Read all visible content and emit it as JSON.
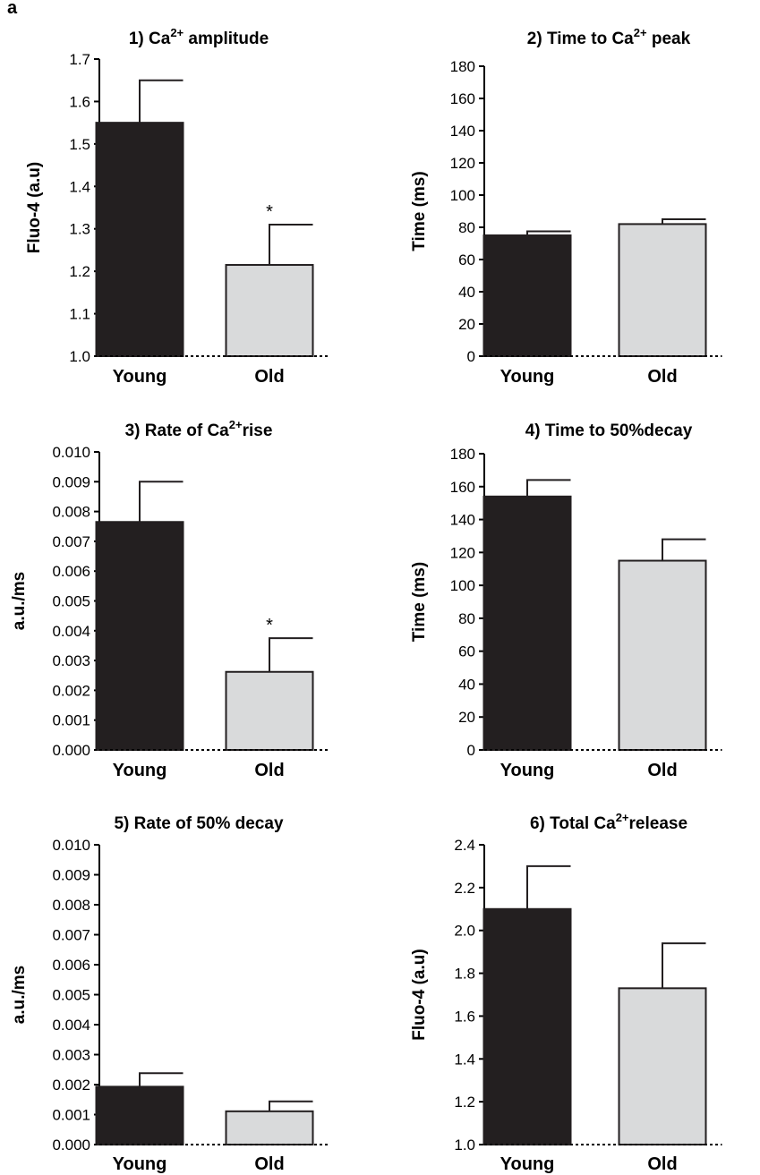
{
  "figure": {
    "panel_label": "a",
    "colors": {
      "young": "#231f20",
      "old": "#d9dadb",
      "axis": "#000000"
    }
  },
  "chart_data": [
    {
      "type": "bar",
      "title_parts": [
        "1) Ca",
        "2+",
        " amplitude"
      ],
      "ylabel": "Fluo-4 (a.u)",
      "categories": [
        "Young",
        "Old"
      ],
      "values": [
        1.55,
        1.215
      ],
      "errors": [
        0.1,
        0.095
      ],
      "significance": [
        "",
        "*"
      ],
      "ylim": [
        1.0,
        1.7
      ],
      "yticks": [
        "1.0",
        "1.1",
        "1.2",
        "1.3",
        "1.4",
        "1.5",
        "1.6",
        "1.7"
      ],
      "baseline_dotted": true
    },
    {
      "type": "bar",
      "title_parts": [
        "2) Time to Ca",
        "2+",
        " peak"
      ],
      "ylabel": "Time (ms)",
      "categories": [
        "Young",
        "Old"
      ],
      "values": [
        75,
        82
      ],
      "errors": [
        2.5,
        3
      ],
      "significance": [
        "",
        ""
      ],
      "ylim": [
        0,
        180
      ],
      "yticks": [
        "0",
        "20",
        "40",
        "60",
        "80",
        "100",
        "120",
        "140",
        "160",
        "180"
      ],
      "baseline_dotted": true
    },
    {
      "type": "bar",
      "title_parts": [
        "3) Rate of Ca",
        "2+",
        "rise"
      ],
      "ylabel": "a.u./ms",
      "categories": [
        "Young",
        "Old"
      ],
      "values": [
        0.00765,
        0.00262
      ],
      "errors": [
        0.00135,
        0.00113
      ],
      "significance": [
        "",
        "*"
      ],
      "ylim": [
        0.0,
        0.01
      ],
      "yticks": [
        "0.000",
        "0.001",
        "0.002",
        "0.003",
        "0.004",
        "0.005",
        "0.006",
        "0.007",
        "0.008",
        "0.009",
        "0.010"
      ],
      "baseline_dotted": true
    },
    {
      "type": "bar",
      "title_parts": [
        "4) Time to 50%decay",
        "",
        ""
      ],
      "ylabel": "Time (ms)",
      "categories": [
        "Young",
        "Old"
      ],
      "values": [
        154,
        115
      ],
      "errors": [
        10,
        13
      ],
      "significance": [
        "",
        ""
      ],
      "ylim": [
        0,
        180
      ],
      "yticks": [
        "0",
        "20",
        "40",
        "60",
        "80",
        "100",
        "120",
        "140",
        "160",
        "180"
      ],
      "baseline_dotted": true
    },
    {
      "type": "bar",
      "title_parts": [
        "5) Rate of 50% decay",
        "",
        ""
      ],
      "ylabel": "a.u./ms",
      "categories": [
        "Young",
        "Old"
      ],
      "values": [
        0.00193,
        0.00111
      ],
      "errors": [
        0.00045,
        0.00033
      ],
      "significance": [
        "",
        ""
      ],
      "ylim": [
        0.0,
        0.01
      ],
      "yticks": [
        "0.000",
        "0.001",
        "0.002",
        "0.003",
        "0.004",
        "0.005",
        "0.006",
        "0.007",
        "0.008",
        "0.009",
        "0.010"
      ],
      "baseline_dotted": true
    },
    {
      "type": "bar",
      "title_parts": [
        "6) Total Ca",
        "2+",
        "release"
      ],
      "ylabel": "Fluo-4 (a.u)",
      "categories": [
        "Young",
        "Old"
      ],
      "values": [
        2.1,
        1.73
      ],
      "errors": [
        0.2,
        0.21
      ],
      "significance": [
        "",
        ""
      ],
      "ylim": [
        1.0,
        2.4
      ],
      "yticks": [
        "1.0",
        "1.2",
        "1.4",
        "1.6",
        "1.8",
        "2.0",
        "2.2",
        "2.4"
      ],
      "baseline_dotted": true
    }
  ]
}
